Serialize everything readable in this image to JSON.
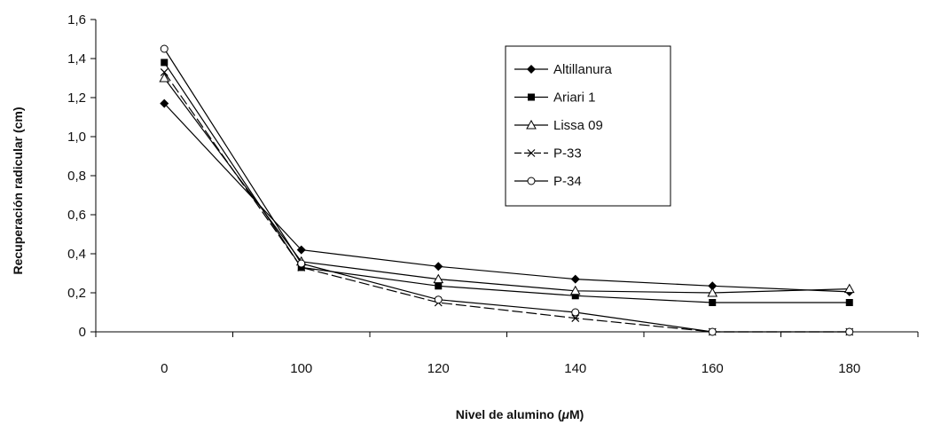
{
  "chart_data": {
    "type": "line",
    "title": "",
    "xlabel": "Nivel de alumino (",
    "xlabel_mu": "μ",
    "xlabel_end": "M)",
    "ylabel": "Recuperación radicular (cm)",
    "categories": [
      "0",
      "100",
      "120",
      "140",
      "160",
      "180"
    ],
    "y_ticks": [
      "0",
      "0,2",
      "0,4",
      "0,6",
      "0,8",
      "1,0",
      "1,2",
      "1,4",
      "1,6"
    ],
    "ylim": [
      0,
      1.6
    ],
    "grid": false,
    "legend_position": "top-right",
    "series": [
      {
        "name": "Altillanura",
        "marker": "diamond-filled",
        "dash": "solid",
        "values": [
          1.17,
          0.42,
          0.335,
          0.27,
          0.235,
          0.205
        ]
      },
      {
        "name": "Ariari 1",
        "marker": "square-filled",
        "dash": "solid",
        "values": [
          1.38,
          0.33,
          0.235,
          0.185,
          0.15,
          0.15
        ]
      },
      {
        "name": "Lissa 09",
        "marker": "triangle-open",
        "dash": "solid",
        "values": [
          1.3,
          0.36,
          0.27,
          0.21,
          0.2,
          0.22
        ]
      },
      {
        "name": "P-33",
        "marker": "x",
        "dash": "dashed",
        "values": [
          1.33,
          0.33,
          0.15,
          0.07,
          0.0,
          0.0
        ]
      },
      {
        "name": "P-34",
        "marker": "circle-open",
        "dash": "solid",
        "values": [
          1.45,
          0.35,
          0.165,
          0.1,
          0.0,
          0.0
        ]
      }
    ]
  }
}
